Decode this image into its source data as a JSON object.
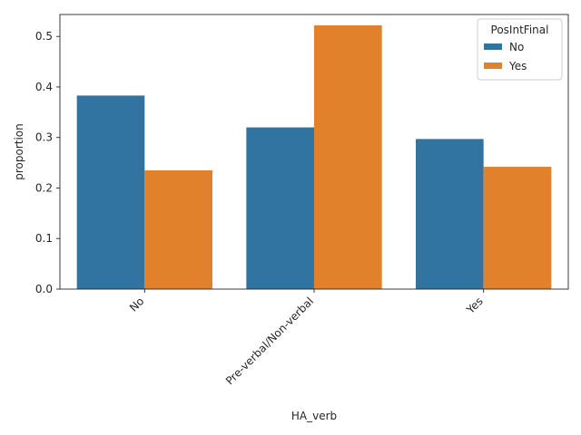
{
  "chart_data": {
    "type": "bar",
    "xlabel": "HA_verb",
    "ylabel": "proportion",
    "categories": [
      "No",
      "Pre-verbal/Non-verbal",
      "Yes"
    ],
    "series": [
      {
        "name": "No",
        "color": "#3274a1",
        "values": [
          0.383,
          0.32,
          0.297
        ]
      },
      {
        "name": "Yes",
        "color": "#e1812c",
        "values": [
          0.235,
          0.522,
          0.242
        ]
      }
    ],
    "ylim": [
      0,
      0.5434
    ],
    "yticks": [
      "0.0",
      "0.1",
      "0.2",
      "0.3",
      "0.4",
      "0.5"
    ],
    "legend": {
      "title": "PosIntFinal",
      "placement": "top-right"
    },
    "grid": false
  }
}
